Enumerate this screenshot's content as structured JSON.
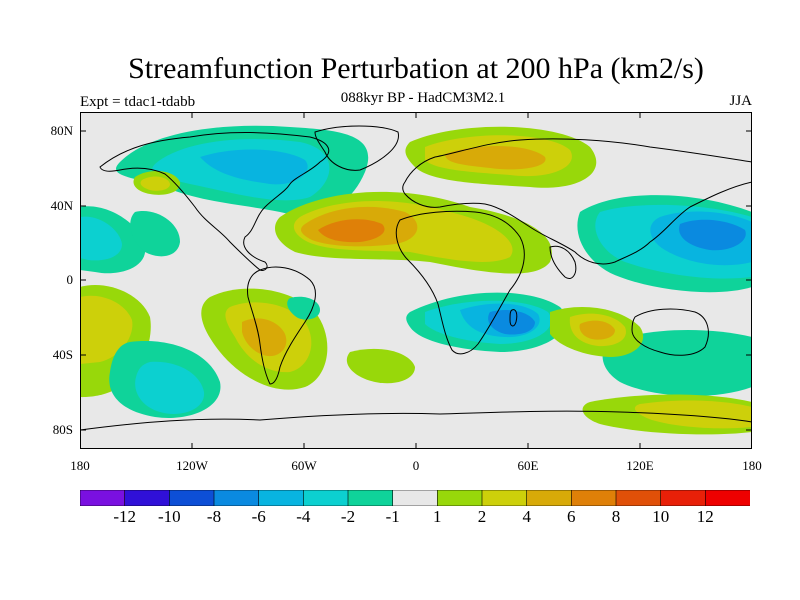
{
  "header": {
    "title": "Streamfunction Perturbation at 200 hPa (km2/s)",
    "subtitle": "088kyr BP - HadCM3M2.1",
    "left_label": "Expt = tdac1-tdabb",
    "right_label": "JJA"
  },
  "axes": {
    "x_ticks": [
      "180",
      "120W",
      "60W",
      "0",
      "60E",
      "120E",
      "180"
    ],
    "y_ticks": [
      "80N",
      "40N",
      "0",
      "40S",
      "80S"
    ]
  },
  "colorbar": {
    "labels": [
      "-12",
      "-10",
      "-8",
      "-6",
      "-4",
      "-2",
      "-1",
      "1",
      "2",
      "4",
      "6",
      "8",
      "10",
      "12"
    ],
    "colors": [
      "#7a10e0",
      "#3010d8",
      "#0d4fd6",
      "#0a8ae0",
      "#08b4e0",
      "#0cd0d0",
      "#0fd39a",
      "#e8e8e8",
      "#98d80a",
      "#cdd00a",
      "#d8aa08",
      "#df8008",
      "#e05008",
      "#e82008",
      "#ee0000"
    ]
  },
  "map_colors": {
    "bg": "#e8e8e8",
    "n2": "#0fd39a",
    "n4": "#0cd0d0",
    "n6": "#08b4e0",
    "n8": "#0a8ae0",
    "p2": "#98d80a",
    "p4": "#cdd00a",
    "p6": "#d8aa08",
    "p8": "#df8008"
  }
}
